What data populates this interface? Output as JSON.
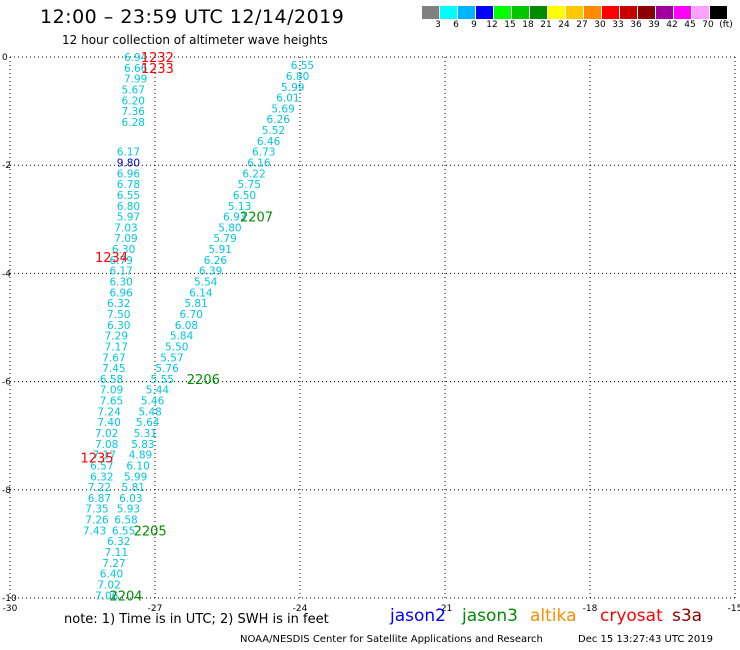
{
  "header": {
    "title": "12:00 – 23:59 UTC 12/14/2019",
    "subtitle": "12 hour collection of altimeter wave heights"
  },
  "color_scale": {
    "colors": [
      "#808080",
      "#00ffff",
      "#00b4ff",
      "#0000ff",
      "#00ff00",
      "#00c800",
      "#008c00",
      "#ffff00",
      "#ffc800",
      "#ff8c00",
      "#ff0000",
      "#c80000",
      "#8c0000",
      "#a000a0",
      "#ff00ff",
      "#ffa0ff",
      "#000000"
    ],
    "labels": [
      "3",
      "6",
      "9",
      "12",
      "15",
      "18",
      "21",
      "24",
      "27",
      "30",
      "33",
      "36",
      "39",
      "42",
      "45",
      "70",
      "(ft)"
    ]
  },
  "map": {
    "lon_ticks": [
      "-30",
      "-27",
      "-24",
      "-21",
      "-18",
      "-15"
    ],
    "lat_ticks": [
      "0",
      "-2",
      "-4",
      "-6",
      "-8",
      "-10"
    ]
  },
  "tracks": [
    {
      "satellite": "jason3",
      "color": "#00c8dc",
      "points": [
        {
          "lon": -27.4,
          "lat": 0.0,
          "swh": "6.94"
        },
        {
          "lon": -27.4,
          "lat": -0.2,
          "swh": "6.66"
        },
        {
          "lon": -27.4,
          "lat": -0.4,
          "swh": "7.99"
        },
        {
          "lon": -27.45,
          "lat": -0.6,
          "swh": "5.67"
        },
        {
          "lon": -27.45,
          "lat": -0.8,
          "swh": "6.20"
        },
        {
          "lon": -27.45,
          "lat": -1.0,
          "swh": "7.36"
        },
        {
          "lon": -27.45,
          "lat": -1.2,
          "swh": "6.28"
        },
        {
          "lon": -27.55,
          "lat": -1.75,
          "swh": "6.17"
        },
        {
          "lon": -27.55,
          "lat": -1.95,
          "swh": "9.80",
          "color": "#0000c8"
        },
        {
          "lon": -27.55,
          "lat": -2.15,
          "swh": "6.96"
        },
        {
          "lon": -27.55,
          "lat": -2.35,
          "swh": "6.78"
        },
        {
          "lon": -27.55,
          "lat": -2.55,
          "swh": "6.55"
        },
        {
          "lon": -27.55,
          "lat": -2.75,
          "swh": "6.80"
        },
        {
          "lon": -27.55,
          "lat": -2.95,
          "swh": "5.97"
        },
        {
          "lon": -27.6,
          "lat": -3.15,
          "swh": "7.03"
        },
        {
          "lon": -27.6,
          "lat": -3.35,
          "swh": "7.09"
        },
        {
          "lon": -27.65,
          "lat": -3.55,
          "swh": "6.30"
        },
        {
          "lon": -27.7,
          "lat": -3.75,
          "swh": "6.79"
        },
        {
          "lon": -27.7,
          "lat": -3.95,
          "swh": "6.17"
        },
        {
          "lon": -27.7,
          "lat": -4.15,
          "swh": "6.30"
        },
        {
          "lon": -27.7,
          "lat": -4.35,
          "swh": "6.96"
        },
        {
          "lon": -27.75,
          "lat": -4.55,
          "swh": "6.32"
        },
        {
          "lon": -27.75,
          "lat": -4.75,
          "swh": "7.50"
        },
        {
          "lon": -27.75,
          "lat": -4.95,
          "swh": "6.30"
        },
        {
          "lon": -27.8,
          "lat": -5.15,
          "swh": "7.29"
        },
        {
          "lon": -27.8,
          "lat": -5.35,
          "swh": "7.17"
        },
        {
          "lon": -27.85,
          "lat": -5.55,
          "swh": "7.67"
        },
        {
          "lon": -27.85,
          "lat": -5.75,
          "swh": "7.45"
        },
        {
          "lon": -27.9,
          "lat": -5.95,
          "swh": "6.58"
        },
        {
          "lon": -27.9,
          "lat": -6.15,
          "swh": "7.09"
        },
        {
          "lon": -27.9,
          "lat": -6.35,
          "swh": "7.65"
        },
        {
          "lon": -27.95,
          "lat": -6.55,
          "swh": "7.24"
        },
        {
          "lon": -27.95,
          "lat": -6.75,
          "swh": "7.40"
        },
        {
          "lon": -28.0,
          "lat": -6.95,
          "swh": "7.02"
        },
        {
          "lon": -28.0,
          "lat": -7.15,
          "swh": "7.08"
        },
        {
          "lon": -28.05,
          "lat": -7.35,
          "swh": "7.17"
        },
        {
          "lon": -28.1,
          "lat": -7.55,
          "swh": "6.57"
        },
        {
          "lon": -28.1,
          "lat": -7.75,
          "swh": "6.32"
        },
        {
          "lon": -28.15,
          "lat": -7.95,
          "swh": "7.22"
        },
        {
          "lon": -28.15,
          "lat": -8.15,
          "swh": "6.87"
        },
        {
          "lon": -28.2,
          "lat": -8.35,
          "swh": "7.35"
        },
        {
          "lon": -28.2,
          "lat": -8.55,
          "swh": "7.26"
        },
        {
          "lon": -28.25,
          "lat": -8.75,
          "swh": "7.43"
        }
      ]
    },
    {
      "satellite": "jason3",
      "color": "#00c8dc",
      "points": [
        {
          "lon": -23.95,
          "lat": -0.15,
          "swh": "6.55"
        },
        {
          "lon": -24.05,
          "lat": -0.35,
          "swh": "6.80"
        },
        {
          "lon": -24.15,
          "lat": -0.55,
          "swh": "5.99"
        },
        {
          "lon": -24.25,
          "lat": -0.75,
          "swh": "6.01"
        },
        {
          "lon": -24.35,
          "lat": -0.95,
          "swh": "5.69"
        },
        {
          "lon": -24.45,
          "lat": -1.15,
          "swh": "6.26"
        },
        {
          "lon": -24.55,
          "lat": -1.35,
          "swh": "5.52"
        },
        {
          "lon": -24.65,
          "lat": -1.55,
          "swh": "6.46"
        },
        {
          "lon": -24.75,
          "lat": -1.75,
          "swh": "6.73"
        },
        {
          "lon": -24.85,
          "lat": -1.95,
          "swh": "6.16"
        },
        {
          "lon": -24.95,
          "lat": -2.15,
          "swh": "6.22"
        },
        {
          "lon": -25.05,
          "lat": -2.35,
          "swh": "5.75"
        },
        {
          "lon": -25.15,
          "lat": -2.55,
          "swh": "6.50"
        },
        {
          "lon": -25.25,
          "lat": -2.75,
          "swh": "5.13"
        },
        {
          "lon": -25.35,
          "lat": -2.95,
          "swh": "6.93"
        },
        {
          "lon": -25.45,
          "lat": -3.15,
          "swh": "5.80"
        },
        {
          "lon": -25.55,
          "lat": -3.35,
          "swh": "5.79"
        },
        {
          "lon": -25.65,
          "lat": -3.55,
          "swh": "5.91"
        },
        {
          "lon": -25.75,
          "lat": -3.75,
          "swh": "6.26"
        },
        {
          "lon": -25.85,
          "lat": -3.95,
          "swh": "6.39"
        },
        {
          "lon": -25.95,
          "lat": -4.15,
          "swh": "5.54"
        },
        {
          "lon": -26.05,
          "lat": -4.35,
          "swh": "6.14"
        },
        {
          "lon": -26.15,
          "lat": -4.55,
          "swh": "5.81"
        },
        {
          "lon": -26.25,
          "lat": -4.75,
          "swh": "6.70"
        },
        {
          "lon": -26.35,
          "lat": -4.95,
          "swh": "6.08"
        },
        {
          "lon": -26.45,
          "lat": -5.15,
          "swh": "5.84"
        },
        {
          "lon": -26.55,
          "lat": -5.35,
          "swh": "5.50"
        },
        {
          "lon": -26.65,
          "lat": -5.55,
          "swh": "5.57"
        },
        {
          "lon": -26.75,
          "lat": -5.75,
          "swh": "5.76"
        },
        {
          "lon": -26.85,
          "lat": -5.95,
          "swh": "5.55"
        },
        {
          "lon": -26.95,
          "lat": -6.15,
          "swh": "5.44"
        },
        {
          "lon": -27.05,
          "lat": -6.35,
          "swh": "5.46"
        },
        {
          "lon": -27.1,
          "lat": -6.55,
          "swh": "5.48"
        },
        {
          "lon": -27.15,
          "lat": -6.75,
          "swh": "5.64"
        },
        {
          "lon": -27.2,
          "lat": -6.95,
          "swh": "5.31"
        },
        {
          "lon": -27.25,
          "lat": -7.15,
          "swh": "5.83"
        },
        {
          "lon": -27.3,
          "lat": -7.35,
          "swh": "4.89"
        },
        {
          "lon": -27.35,
          "lat": -7.55,
          "swh": "6.10"
        },
        {
          "lon": -27.4,
          "lat": -7.75,
          "swh": "5.99"
        },
        {
          "lon": -27.45,
          "lat": -7.95,
          "swh": "5.81"
        },
        {
          "lon": -27.5,
          "lat": -8.15,
          "swh": "6.03"
        },
        {
          "lon": -27.55,
          "lat": -8.35,
          "swh": "5.93"
        },
        {
          "lon": -27.6,
          "lat": -8.55,
          "swh": "6.58"
        },
        {
          "lon": -27.65,
          "lat": -8.75,
          "swh": "6.55"
        },
        {
          "lon": -27.75,
          "lat": -8.95,
          "swh": "6.32"
        },
        {
          "lon": -27.8,
          "lat": -9.15,
          "swh": "7.11"
        },
        {
          "lon": -27.85,
          "lat": -9.35,
          "swh": "7.27"
        },
        {
          "lon": -27.9,
          "lat": -9.55,
          "swh": "6.40"
        },
        {
          "lon": -27.95,
          "lat": -9.75,
          "swh": "7.02"
        },
        {
          "lon": -28.0,
          "lat": -9.95,
          "swh": "7.06"
        }
      ]
    }
  ],
  "time_labels": [
    {
      "text": "1232",
      "lon": -26.95,
      "lat": 0.0,
      "color": "#ff0000"
    },
    {
      "text": "1233",
      "lon": -26.95,
      "lat": -0.2,
      "color": "#ff0000"
    },
    {
      "text": "1234",
      "lon": -27.9,
      "lat": -3.7,
      "color": "#ff0000"
    },
    {
      "text": "1235",
      "lon": -28.2,
      "lat": -7.4,
      "color": "#ff0000"
    },
    {
      "text": "2207",
      "lon": -24.9,
      "lat": -2.95,
      "color": "#008c00"
    },
    {
      "text": "2206",
      "lon": -26.0,
      "lat": -5.95,
      "color": "#008c00"
    },
    {
      "text": "2205",
      "lon": -27.1,
      "lat": -8.75,
      "color": "#008c00"
    },
    {
      "text": "2204",
      "lon": -27.6,
      "lat": -9.95,
      "color": "#008c00"
    }
  ],
  "footer": {
    "note": "note:  1) Time is in UTC;  2) SWH is in feet",
    "legend": [
      {
        "name": "jason2",
        "color": "#0000ff"
      },
      {
        "name": "jason3",
        "color": "#008c00"
      },
      {
        "name": "altika",
        "color": "#ff8c00"
      },
      {
        "name": "cryosat",
        "color": "#ff0000"
      },
      {
        "name": "s3a",
        "color": "#8c0000"
      }
    ],
    "credit": "NOAA/NESDIS Center for Satellite Applications and Research",
    "date": "Dec 15 13:27:43 UTC 2019"
  }
}
